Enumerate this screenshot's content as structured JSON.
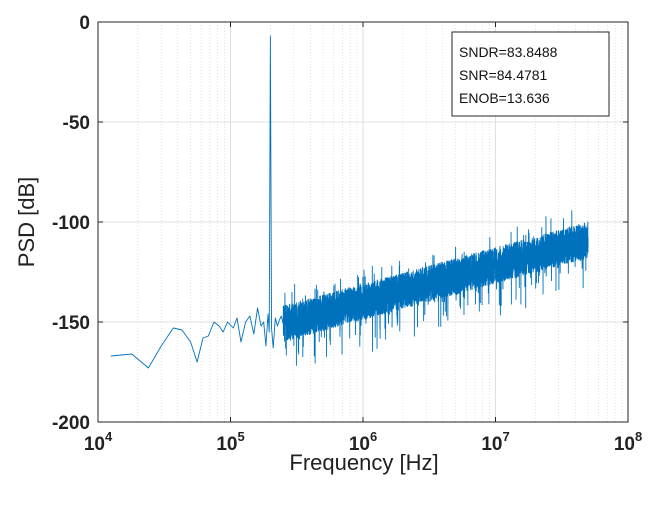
{
  "chart_data": {
    "type": "line",
    "title": "",
    "xlabel": "Frequency [Hz]",
    "ylabel": "PSD [dB]",
    "xscale": "log",
    "xlim": [
      10000,
      100000000
    ],
    "ylim": [
      -200,
      0
    ],
    "grid": true,
    "x_ticks": [
      {
        "base": "10",
        "exp": "4",
        "value": 10000
      },
      {
        "base": "10",
        "exp": "5",
        "value": 100000
      },
      {
        "base": "10",
        "exp": "6",
        "value": 1000000
      },
      {
        "base": "10",
        "exp": "7",
        "value": 10000000
      },
      {
        "base": "10",
        "exp": "8",
        "value": 100000000
      }
    ],
    "y_ticks": [
      "0",
      "-50",
      "-100",
      "-150",
      "-200"
    ],
    "y_tick_values": [
      0,
      -50,
      -100,
      -150,
      -200
    ],
    "annotation": {
      "placement": "top-right",
      "lines": [
        "SNDR=83.8488",
        "SNR=84.4781",
        "ENOB=13.636"
      ]
    },
    "series": [
      {
        "name": "PSD",
        "color": "#0072BD",
        "signal_tone": {
          "x": 200000,
          "y": -7
        },
        "low_freq_points": [
          [
            12500,
            -167
          ],
          [
            18000,
            -166
          ],
          [
            24000,
            -173
          ],
          [
            30000,
            -162
          ],
          [
            37000,
            -153
          ],
          [
            43000,
            -154
          ],
          [
            50000,
            -160
          ],
          [
            56000,
            -170
          ],
          [
            62000,
            -158
          ],
          [
            68000,
            -157
          ],
          [
            75000,
            -150
          ],
          [
            82000,
            -152
          ],
          [
            88000,
            -155
          ],
          [
            95000,
            -150
          ],
          [
            105000,
            -153
          ],
          [
            112000,
            -148
          ],
          [
            120000,
            -160
          ],
          [
            130000,
            -150
          ],
          [
            140000,
            -147
          ],
          [
            150000,
            -156
          ],
          [
            160000,
            -143
          ],
          [
            170000,
            -152
          ],
          [
            178000,
            -150
          ],
          [
            185000,
            -162
          ],
          [
            192000,
            -146
          ],
          [
            196000,
            -155
          ],
          [
            200000,
            -7
          ],
          [
            204000,
            -153
          ],
          [
            210000,
            -163
          ],
          [
            218000,
            -148
          ],
          [
            226000,
            -152
          ],
          [
            234000,
            -149
          ],
          [
            242000,
            -147
          ],
          [
            250000,
            -151
          ]
        ],
        "noise_floor": {
          "start_hz": 250000,
          "end_hz": 50000000,
          "start_db": -150,
          "end_db": -108,
          "spread_db": 9
        }
      }
    ]
  }
}
